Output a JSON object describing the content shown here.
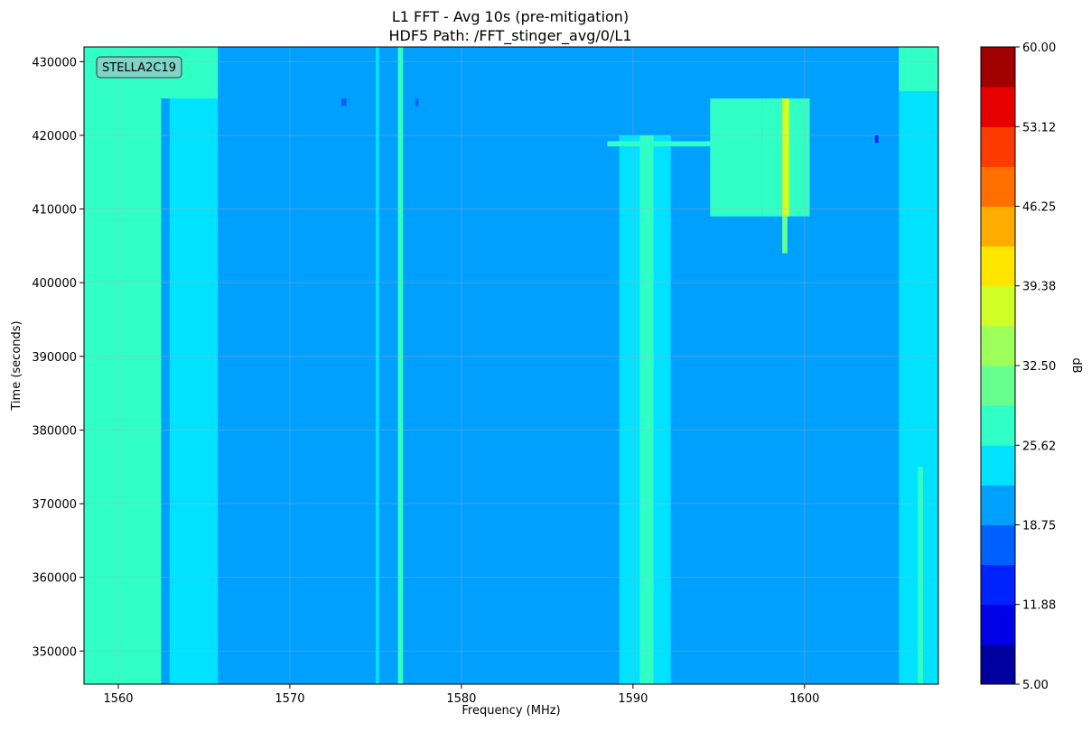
{
  "chart_data": {
    "type": "heatmap",
    "title": "L1 FFT - Avg 10s (pre-mitigation)",
    "subtitle": "HDF5 Path: /FFT_stinger_avg/0/L1",
    "xlabel": "Frequency (MHz)",
    "ylabel": "Time (seconds)",
    "xlim": [
      1558,
      1607.8
    ],
    "ylim": [
      345500,
      432000
    ],
    "x_ticks": [
      1560,
      1570,
      1580,
      1590,
      1600
    ],
    "y_ticks": [
      350000,
      360000,
      370000,
      380000,
      390000,
      400000,
      410000,
      420000,
      430000
    ],
    "grid": true,
    "annotation": "STELLA2C19",
    "colorbar": {
      "label": "dB",
      "range": [
        5,
        60
      ],
      "tick_values": [
        5,
        11.88,
        18.75,
        25.62,
        32.5,
        39.38,
        46.25,
        53.12,
        60
      ],
      "tick_labels": [
        "5.00",
        "11.88",
        "18.75",
        "25.62",
        "32.50",
        "39.38",
        "46.25",
        "53.12",
        "60.00"
      ],
      "levels": 16,
      "colors": [
        "#00009f",
        "#0000e6",
        "#0022ff",
        "#0060ff",
        "#00a0ff",
        "#00e2ff",
        "#30ffc6",
        "#66ff90",
        "#9cff5a",
        "#d0ff26",
        "#ffe600",
        "#ffab00",
        "#ff7000",
        "#ff3a00",
        "#e60000",
        "#a00000"
      ]
    },
    "background_level_db": 22,
    "regions": [
      {
        "x": [
          1558,
          1562.5
        ],
        "y": [
          345500,
          432000
        ],
        "db": 26
      },
      {
        "x": [
          1558,
          1559.3
        ],
        "y": [
          396000,
          432000
        ],
        "db": 29
      },
      {
        "x": [
          1559.3,
          1563
        ],
        "y": [
          425000,
          432000
        ],
        "db": 29
      },
      {
        "x": [
          1563,
          1565.8
        ],
        "y": [
          345500,
          426000
        ],
        "db": 23.5
      },
      {
        "x": [
          1563,
          1565.8
        ],
        "y": [
          425000,
          432000
        ],
        "db": 26
      },
      {
        "x": [
          1575,
          1575.2
        ],
        "y": [
          345500,
          432000
        ],
        "db": 24.5
      },
      {
        "x": [
          1576.3,
          1576.6
        ],
        "y": [
          345500,
          432000
        ],
        "db": 26
      },
      {
        "x": [
          1589.2,
          1592.2
        ],
        "y": [
          345500,
          420000
        ],
        "db": 24.5
      },
      {
        "x": [
          1590.4,
          1591.2
        ],
        "y": [
          345500,
          420000
        ],
        "db": 26
      },
      {
        "x": [
          1588.5,
          1594.5
        ],
        "y": [
          418500,
          419200
        ],
        "db": 26
      },
      {
        "x": [
          1594.5,
          1597.5
        ],
        "y": [
          409000,
          425000
        ],
        "db": 27
      },
      {
        "x": [
          1597.5,
          1600.3
        ],
        "y": [
          409000,
          425000
        ],
        "db": 27
      },
      {
        "x": [
          1598.7,
          1599.1
        ],
        "y": [
          409000,
          425000
        ],
        "db": 36
      },
      {
        "x": [
          1598.7,
          1599.0
        ],
        "y": [
          404000,
          409000
        ],
        "db": 30
      },
      {
        "x": [
          1605.5,
          1607.8
        ],
        "y": [
          345500,
          432000
        ],
        "db": 24.5
      },
      {
        "x": [
          1606.6,
          1606.9
        ],
        "y": [
          345500,
          375000
        ],
        "db": 26
      },
      {
        "x": [
          1605.5,
          1607.8
        ],
        "y": [
          426000,
          432000
        ],
        "db": 27
      },
      {
        "x": [
          1573,
          1573.3
        ],
        "y": [
          424000,
          425000
        ],
        "db": 16
      },
      {
        "x": [
          1577.3,
          1577.5
        ],
        "y": [
          424000,
          425000
        ],
        "db": 16
      },
      {
        "x": [
          1604.1,
          1604.3
        ],
        "y": [
          419000,
          420000
        ],
        "db": 15
      }
    ]
  }
}
